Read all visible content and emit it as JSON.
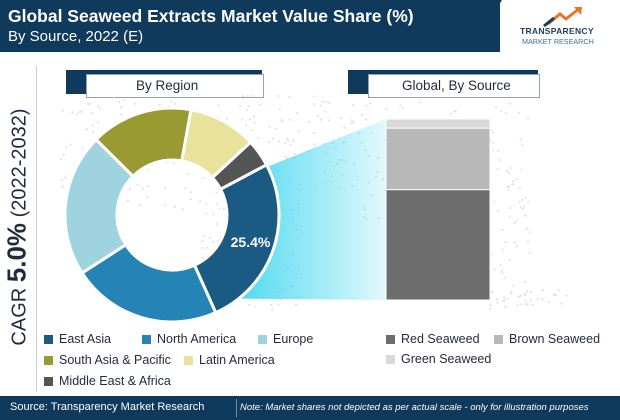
{
  "header": {
    "title": "Global Seaweed Extracts Market Value Share (%)",
    "subtitle": "By Source, 2022 (E)"
  },
  "logo": {
    "name": "TRANSPARENCY",
    "sub": "MARKET RESEARCH"
  },
  "cagr": {
    "prefix": "CAGR",
    "value": "5.0%",
    "period": "(2022-2032)"
  },
  "panels": {
    "left_label": "By Region",
    "right_label": "Global, By Source"
  },
  "chart_data": [
    {
      "type": "pie",
      "title": "By Region",
      "categories": [
        "East Asia",
        "North America",
        "Europe",
        "South Asia & Pacific",
        "Latin America",
        "Middle East & Africa"
      ],
      "values": [
        25.4,
        22,
        21,
        15,
        10,
        4
      ],
      "colors": [
        "#1b5a82",
        "#2584b5",
        "#9fd3e0",
        "#9a9a33",
        "#e8e29a",
        "#555555"
      ],
      "data_labels": [
        "25.4%",
        "",
        "",
        "",
        "",
        ""
      ],
      "donut": true
    },
    {
      "type": "bar",
      "title": "Global, By Source",
      "stacked": true,
      "categories": [
        "Global"
      ],
      "series": [
        {
          "name": "Red Seaweed",
          "values": [
            61
          ],
          "color": "#6d6d6d"
        },
        {
          "name": "Brown Seaweed",
          "values": [
            34
          ],
          "color": "#b8b8b8"
        },
        {
          "name": "Green Seaweed",
          "values": [
            5
          ],
          "color": "#d9d9d9"
        }
      ]
    }
  ],
  "legend_left": [
    {
      "label": "East Asia",
      "color": "#1b5a82"
    },
    {
      "label": "North America",
      "color": "#2584b5"
    },
    {
      "label": "Europe",
      "color": "#9fd3e0"
    },
    {
      "label": "South Asia & Pacific",
      "color": "#9a9a33"
    },
    {
      "label": "Latin America",
      "color": "#e8e29a"
    },
    {
      "label": "Middle East & Africa",
      "color": "#555555"
    }
  ],
  "legend_right": [
    {
      "label": "Red Seaweed",
      "color": "#6d6d6d"
    },
    {
      "label": "Brown Seaweed",
      "color": "#b8b8b8"
    },
    {
      "label": "Green Seaweed",
      "color": "#d9d9d9"
    }
  ],
  "footer": {
    "source": "Source: Transparency Market Research",
    "note": "Note: Market shares not depicted as per actual scale - only for illustration purposes"
  },
  "colors": {
    "brand": "#0f3a5c",
    "accent": "#e8742a",
    "highlight": "#3fd6ef"
  }
}
